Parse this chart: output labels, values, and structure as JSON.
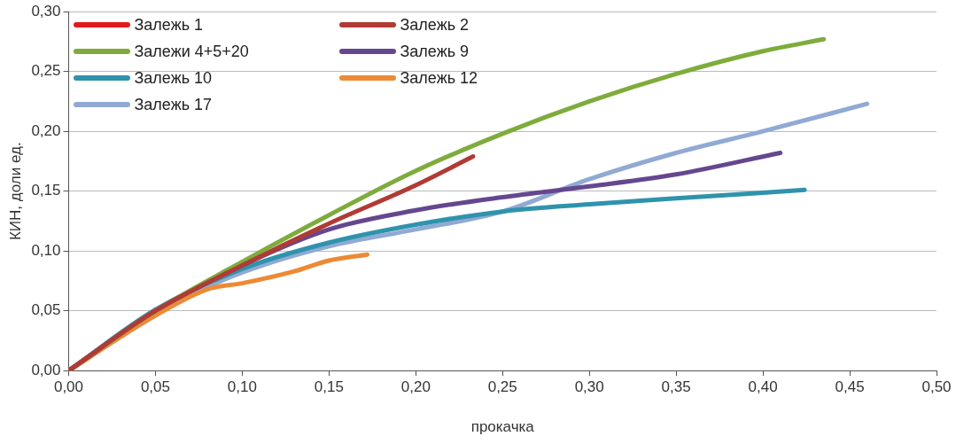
{
  "chart_data": {
    "type": "line",
    "xlabel": "прокачка",
    "ylabel": "КИН, доли ед.",
    "xlim": [
      0,
      0.5
    ],
    "ylim": [
      0,
      0.3
    ],
    "xticks": [
      {
        "value": 0,
        "label": "0,00"
      },
      {
        "value": 0.05,
        "label": "0,05"
      },
      {
        "value": 0.1,
        "label": "0,10"
      },
      {
        "value": 0.15,
        "label": "0,15"
      },
      {
        "value": 0.2,
        "label": "0,20"
      },
      {
        "value": 0.25,
        "label": "0,25"
      },
      {
        "value": 0.3,
        "label": "0,30"
      },
      {
        "value": 0.35,
        "label": "0,35"
      },
      {
        "value": 0.4,
        "label": "0,40"
      },
      {
        "value": 0.45,
        "label": "0,45"
      },
      {
        "value": 0.5,
        "label": "0,50"
      }
    ],
    "yticks": [
      {
        "value": 0,
        "label": "0,00"
      },
      {
        "value": 0.05,
        "label": "0,05"
      },
      {
        "value": 0.1,
        "label": "0,10"
      },
      {
        "value": 0.15,
        "label": "0,15"
      },
      {
        "value": 0.2,
        "label": "0,20"
      },
      {
        "value": 0.25,
        "label": "0,25"
      },
      {
        "value": 0.3,
        "label": "0,30"
      }
    ],
    "grid": "y",
    "legend": "top left",
    "marker": "none",
    "line_style": "solid",
    "series": [
      {
        "name": "Залежь 1",
        "color": "#e31a1c"
      },
      {
        "name": "Залежь 2",
        "color": "#b03a35",
        "x": [
          0,
          0.05,
          0.1,
          0.15,
          0.2,
          0.233
        ],
        "values": [
          0,
          0.05,
          0.088,
          0.123,
          0.155,
          0.179
        ]
      },
      {
        "name": "Залежи 4+5+20",
        "color": "#7eac3c",
        "x": [
          0,
          0.05,
          0.1,
          0.15,
          0.2,
          0.25,
          0.3,
          0.35,
          0.4,
          0.435
        ],
        "values": [
          0,
          0.05,
          0.091,
          0.13,
          0.167,
          0.198,
          0.225,
          0.248,
          0.267,
          0.277
        ]
      },
      {
        "name": "Залежь 9",
        "color": "#65478f",
        "x": [
          0,
          0.05,
          0.1,
          0.15,
          0.2,
          0.25,
          0.3,
          0.35,
          0.41
        ],
        "values": [
          0,
          0.05,
          0.088,
          0.118,
          0.134,
          0.145,
          0.154,
          0.164,
          0.182
        ]
      },
      {
        "name": "Залежь 10",
        "color": "#2f93ad",
        "x": [
          0,
          0.05,
          0.1,
          0.15,
          0.2,
          0.25,
          0.3,
          0.35,
          0.424
        ],
        "values": [
          0,
          0.051,
          0.085,
          0.107,
          0.122,
          0.133,
          0.139,
          0.144,
          0.151
        ]
      },
      {
        "name": "Залежь 12",
        "color": "#ec8a35",
        "x": [
          0,
          0.05,
          0.08,
          0.1,
          0.13,
          0.15,
          0.172
        ],
        "values": [
          0,
          0.046,
          0.068,
          0.073,
          0.083,
          0.092,
          0.097
        ]
      },
      {
        "name": "Залежь 17",
        "color": "#90aad4",
        "x": [
          0,
          0.05,
          0.1,
          0.15,
          0.2,
          0.25,
          0.3,
          0.35,
          0.4,
          0.46
        ],
        "values": [
          0,
          0.049,
          0.082,
          0.104,
          0.118,
          0.133,
          0.16,
          0.182,
          0.2,
          0.223
        ]
      }
    ]
  }
}
